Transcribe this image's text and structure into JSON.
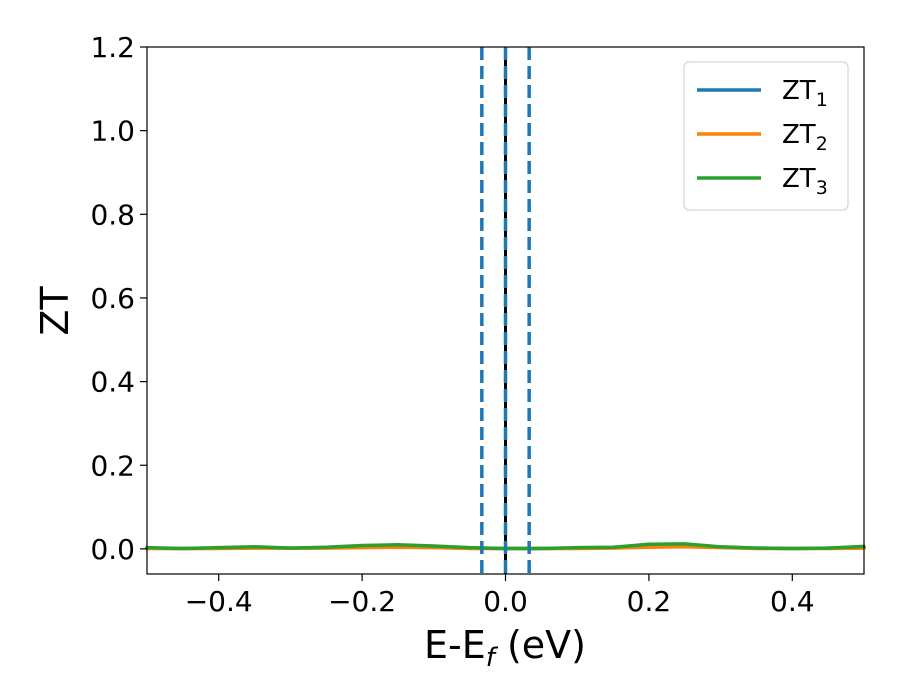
{
  "chart_data": {
    "type": "line",
    "xlabel": "E-E",
    "xlabel_sub": "f",
    "xlabel_unit": " (eV)",
    "ylabel": "ZT",
    "xlim": [
      -0.5,
      0.5
    ],
    "ylim": [
      -0.06,
      1.2
    ],
    "xticks": [
      -0.4,
      -0.2,
      0.0,
      0.2,
      0.4
    ],
    "xtick_labels": [
      "−0.4",
      "−0.2",
      "0.0",
      "0.2",
      "0.4"
    ],
    "yticks": [
      0.0,
      0.2,
      0.4,
      0.6,
      0.8,
      1.0,
      1.2
    ],
    "ytick_labels": [
      "0.0",
      "0.2",
      "0.4",
      "0.6",
      "0.8",
      "1.0",
      "1.2"
    ],
    "grid": false,
    "legend_position": "top-right",
    "x": [
      -0.5,
      -0.45,
      -0.4,
      -0.35,
      -0.3,
      -0.25,
      -0.2,
      -0.15,
      -0.1,
      -0.05,
      0.0,
      0.05,
      0.1,
      0.15,
      0.2,
      0.25,
      0.3,
      0.35,
      0.4,
      0.45,
      0.5
    ],
    "series": [
      {
        "name": "ZT",
        "name_sub": "1",
        "color": "#1f77b4",
        "values": [
          0.002,
          0.001,
          0.002,
          0.003,
          0.002,
          0.003,
          0.005,
          0.006,
          0.004,
          0.002,
          0.001,
          0.001,
          0.002,
          0.003,
          0.008,
          0.009,
          0.004,
          0.002,
          0.001,
          0.002,
          0.004
        ]
      },
      {
        "name": "ZT",
        "name_sub": "2",
        "color": "#ff7f0e",
        "values": [
          0.001,
          0.001,
          0.001,
          0.002,
          0.002,
          0.002,
          0.003,
          0.004,
          0.003,
          0.001,
          0.001,
          0.001,
          0.001,
          0.002,
          0.004,
          0.005,
          0.003,
          0.001,
          0.001,
          0.001,
          0.002
        ]
      },
      {
        "name": "ZT",
        "name_sub": "3",
        "color": "#2ca02c",
        "values": [
          0.003,
          0.001,
          0.003,
          0.005,
          0.002,
          0.004,
          0.008,
          0.01,
          0.007,
          0.003,
          0.001,
          0.001,
          0.003,
          0.004,
          0.011,
          0.012,
          0.005,
          0.002,
          0.001,
          0.002,
          0.006
        ]
      }
    ],
    "vertical_lines": [
      {
        "x": -0.033,
        "style": "dashed",
        "color": "#1f77b4"
      },
      {
        "x": 0.0,
        "style": "solid",
        "color": "#000000"
      },
      {
        "x": 0.0,
        "style": "dashed",
        "color": "#1f77b4"
      },
      {
        "x": 0.033,
        "style": "dashed",
        "color": "#1f77b4"
      }
    ]
  }
}
